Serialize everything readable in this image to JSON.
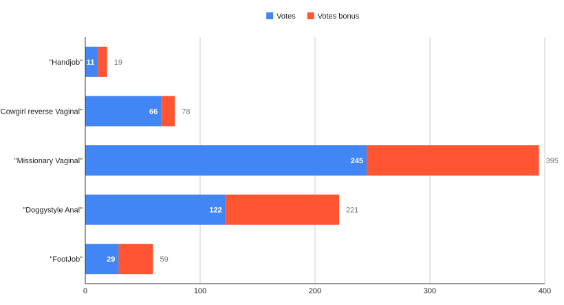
{
  "chart_data": {
    "type": "bar",
    "orientation": "horizontal",
    "stacked": true,
    "title": "",
    "xlabel": "",
    "ylabel": "",
    "categories": [
      "\"Handjob\"",
      "\"Cowgirl reverse Vaginal\"",
      "\"Missionary Vaginal\"",
      "\"Doggystyle Anal\"",
      "\"FootJob\""
    ],
    "series": [
      {
        "name": "Votes",
        "color": "#4285f4",
        "values": [
          11,
          66,
          245,
          122,
          29
        ]
      },
      {
        "name": "Votes bonus",
        "color": "#ff5533",
        "values": [
          8,
          12,
          150,
          99,
          30
        ]
      }
    ],
    "totals": [
      19,
      78,
      395,
      221,
      59
    ],
    "xlim": [
      0,
      400
    ],
    "xticks": [
      0,
      100,
      200,
      300,
      400
    ],
    "grid": true,
    "legend_position": "top-center"
  }
}
